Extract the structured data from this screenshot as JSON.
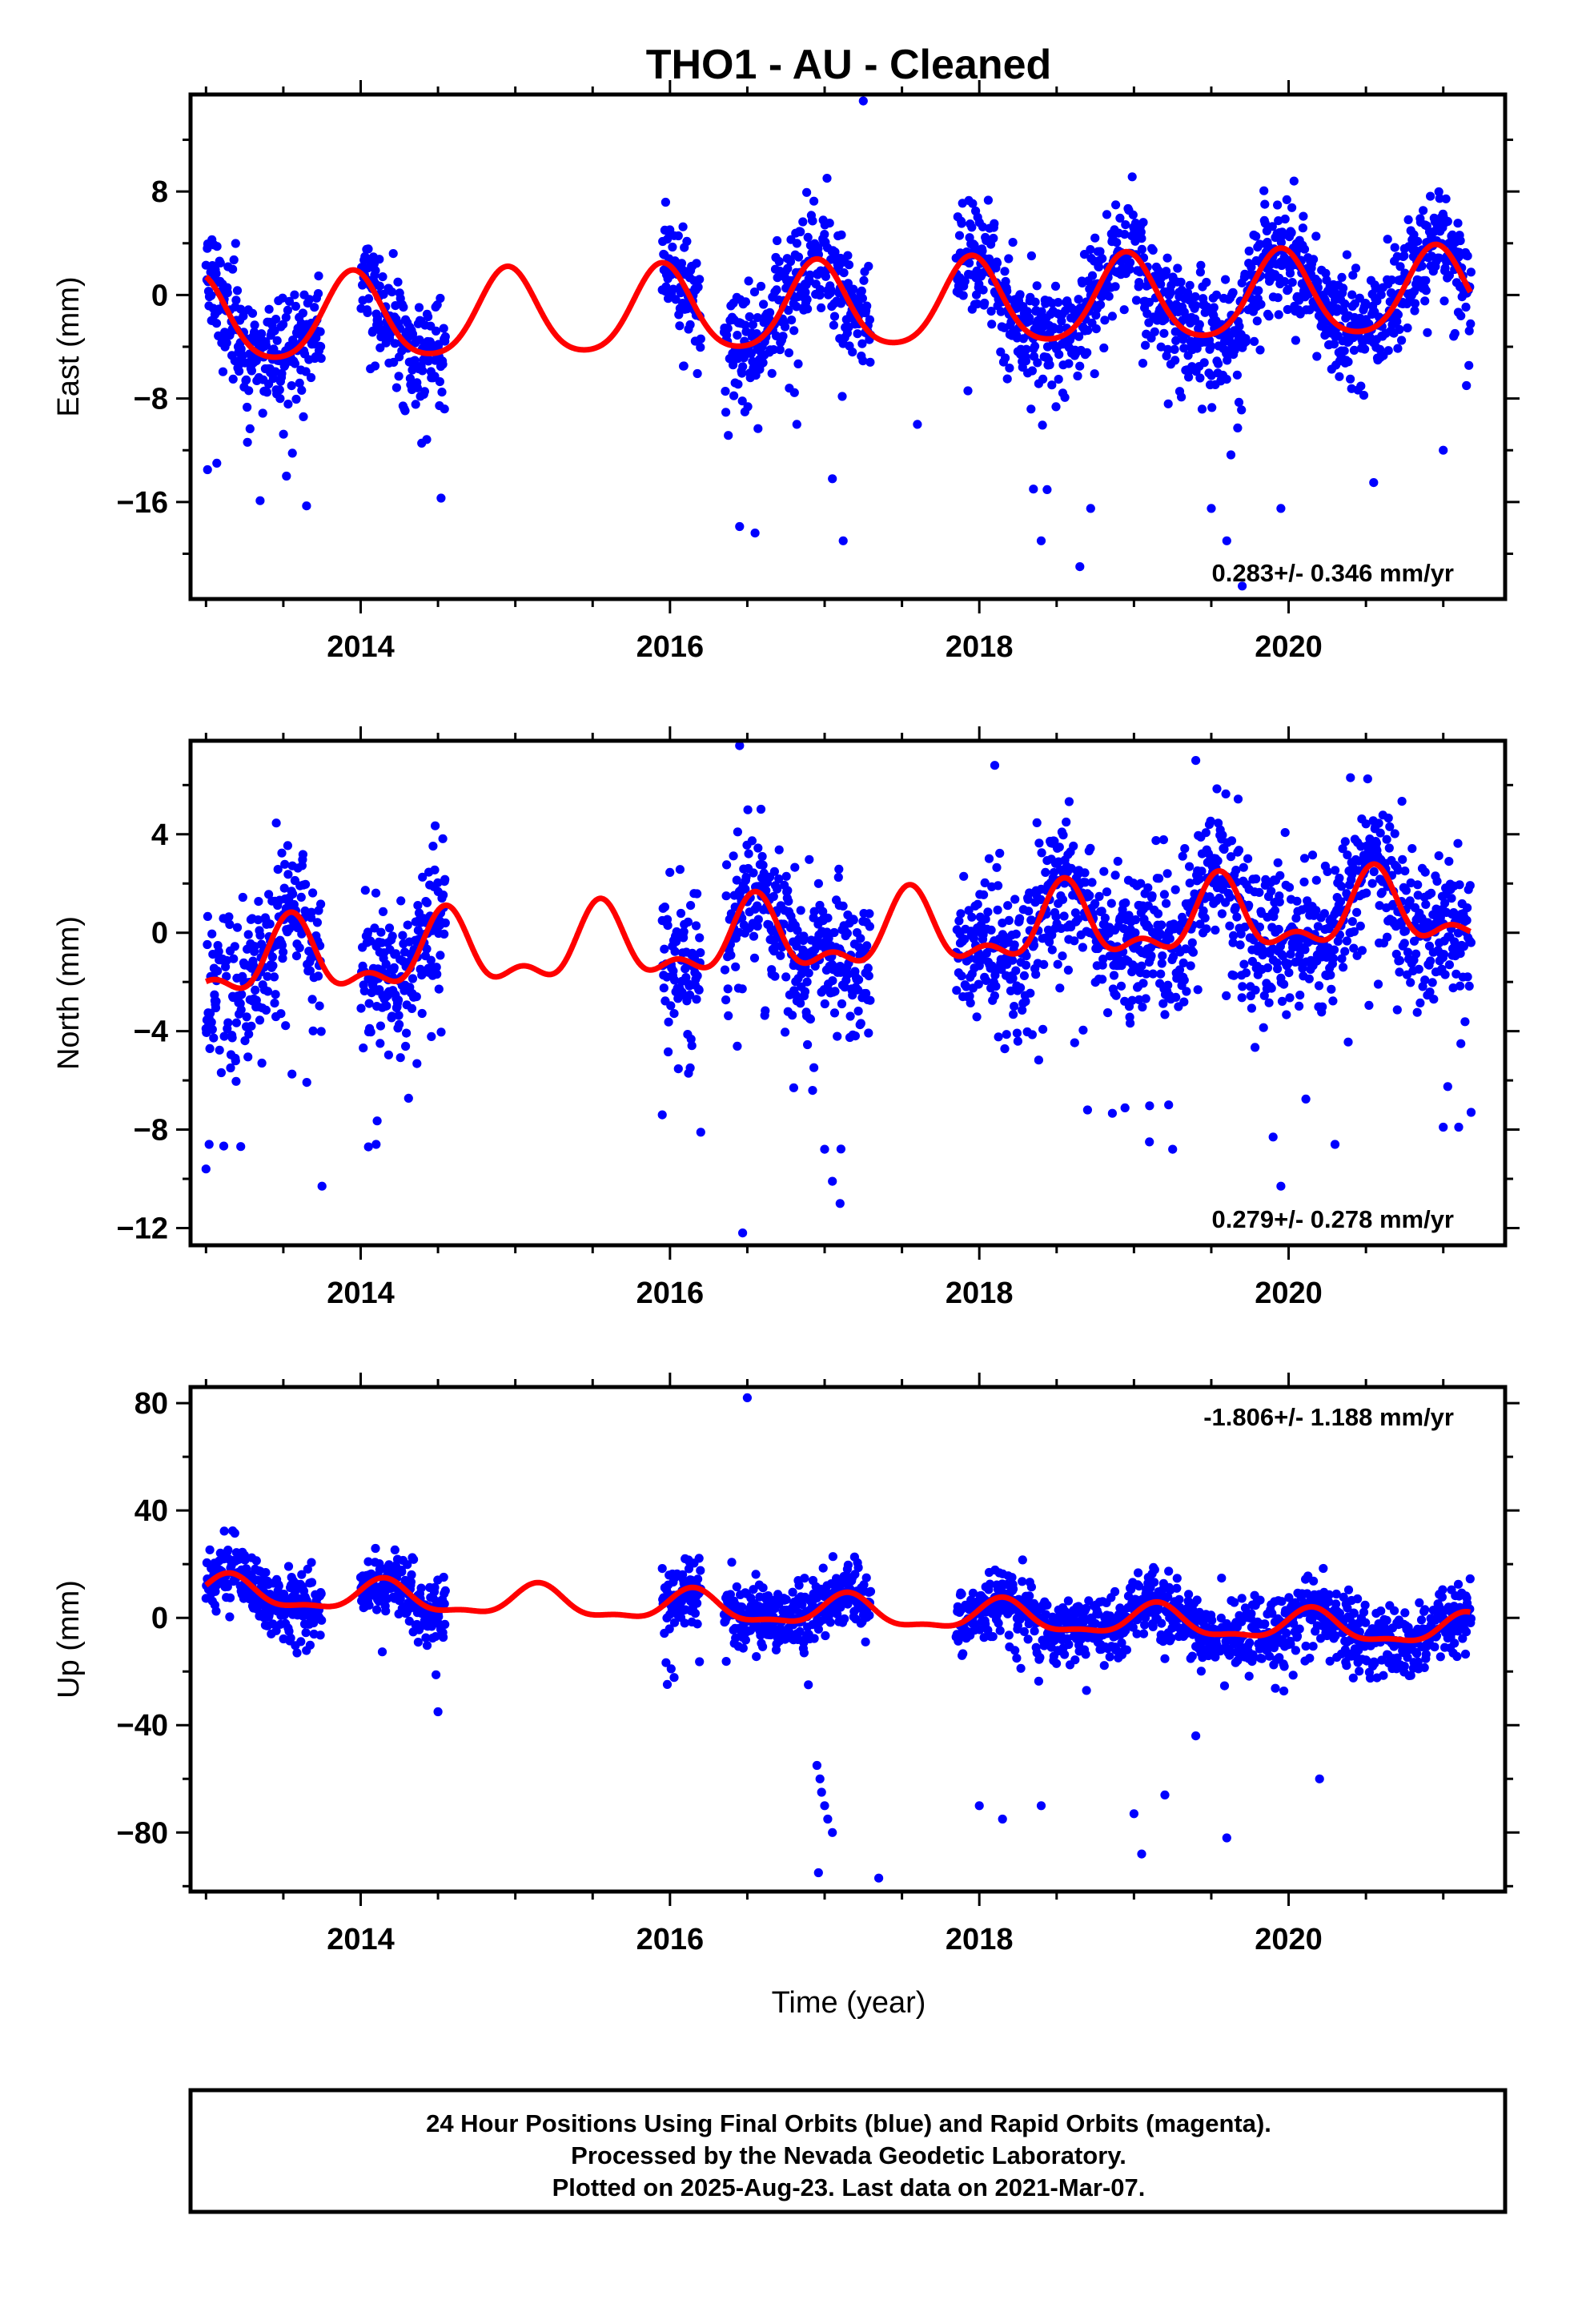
{
  "title": "THO1  - AU - Cleaned",
  "xlabel": "Time (year)",
  "footer": {
    "line1": "24 Hour Positions Using Final Orbits (blue) and Rapid Orbits (magenta).",
    "line2": "Processed by the Nevada Geodetic Laboratory.",
    "line3": "Plotted on 2025-Aug-23. Last data on 2021-Mar-07."
  },
  "colors": {
    "final_orbits": "#0000ff",
    "model": "#ff0000"
  },
  "chart_data": [
    {
      "type": "scatter",
      "component": "east",
      "ylabel": "East (mm)",
      "xlim": [
        2012.9,
        2021.4
      ],
      "ylim": [
        -23.5,
        15.5
      ],
      "yticks": [
        8,
        0,
        -8,
        -16
      ],
      "yticklabels": [
        "8",
        "0",
        "−8",
        "−16"
      ],
      "xticks": [
        2014,
        2016,
        2018,
        2020
      ],
      "xticklabels": [
        "2014",
        "2016",
        "2018",
        "2020"
      ],
      "rate": "0.283+/- 0.346 mm/yr",
      "rate_position": "bottom-right",
      "data_segments": [
        [
          2013.0,
          2013.75
        ],
        [
          2014.0,
          2014.55
        ],
        [
          2015.95,
          2016.2
        ],
        [
          2016.35,
          2017.3
        ],
        [
          2017.85,
          2021.18
        ]
      ],
      "model": {
        "offset": -1.0,
        "rate": 0.283,
        "annual_amp": 3.3,
        "annual_phase_peak": 2013.95,
        "semiannual_amp": 0.5,
        "ref_year": 2017.0
      },
      "scatter_sd": 2.0,
      "outliers": [
        [
          2013.01,
          -13.5
        ],
        [
          2013.07,
          -13.0
        ],
        [
          2013.35,
          -15.9
        ],
        [
          2013.52,
          -14.0
        ],
        [
          2013.65,
          -16.3
        ],
        [
          2014.52,
          -15.7
        ],
        [
          2016.45,
          -17.9
        ],
        [
          2016.55,
          -18.4
        ],
        [
          2016.82,
          -10.0
        ],
        [
          2017.05,
          -14.2
        ],
        [
          2017.12,
          -19.0
        ],
        [
          2017.25,
          15.0
        ],
        [
          2018.35,
          -15.0
        ],
        [
          2018.4,
          -19.0
        ],
        [
          2018.65,
          -21.0
        ],
        [
          2018.72,
          -16.5
        ],
        [
          2019.5,
          -16.5
        ],
        [
          2019.6,
          -19.0
        ],
        [
          2019.7,
          -22.5
        ],
        [
          2019.95,
          -16.5
        ],
        [
          2020.55,
          -14.5
        ],
        [
          2021.0,
          -12.0
        ],
        [
          2021.15,
          -7.0
        ],
        [
          2017.6,
          -10.0
        ]
      ],
      "series": [
        {
          "name": "",
          "color": "#0000ff"
        }
      ]
    },
    {
      "type": "scatter",
      "component": "north",
      "ylabel": "North (mm)",
      "xlim": [
        2012.9,
        2021.4
      ],
      "ylim": [
        -12.7,
        7.8
      ],
      "yticks": [
        4,
        0,
        -4,
        -8,
        -12
      ],
      "yticklabels": [
        "4",
        "0",
        "−4",
        "−8",
        "−12"
      ],
      "xticks": [
        2014,
        2016,
        2018,
        2020
      ],
      "xticklabels": [
        "2014",
        "2016",
        "2018",
        "2020"
      ],
      "rate": "0.279+/- 0.278 mm/yr",
      "rate_position": "bottom-right",
      "data_segments": [
        [
          2013.0,
          2013.75
        ],
        [
          2014.0,
          2014.55
        ],
        [
          2015.95,
          2016.2
        ],
        [
          2016.35,
          2017.3
        ],
        [
          2017.85,
          2021.18
        ]
      ],
      "model": {
        "offset": -0.2,
        "rate": 0.279,
        "annual_amp": 1.3,
        "annual_phase_peak": 2013.55,
        "semiannual_amp": 0.7,
        "ref_year": 2017.0
      },
      "scatter_sd": 1.5,
      "outliers": [
        [
          2013.0,
          -9.6
        ],
        [
          2013.02,
          -8.6
        ],
        [
          2013.75,
          -10.3
        ],
        [
          2014.05,
          -8.7
        ],
        [
          2014.1,
          -8.6
        ],
        [
          2016.45,
          7.6
        ],
        [
          2016.47,
          -12.2
        ],
        [
          2017.0,
          -8.8
        ],
        [
          2017.05,
          -10.1
        ],
        [
          2017.1,
          -11.0
        ],
        [
          2016.8,
          -6.3
        ],
        [
          2018.7,
          -7.2
        ],
        [
          2019.1,
          -8.5
        ],
        [
          2019.25,
          -8.8
        ],
        [
          2019.95,
          -10.3
        ],
        [
          2019.9,
          -8.3
        ],
        [
          2020.3,
          -8.6
        ],
        [
          2021.0,
          -7.9
        ],
        [
          2021.1,
          -7.9
        ],
        [
          2021.18,
          -7.3
        ],
        [
          2015.95,
          -7.4
        ],
        [
          2018.1,
          6.8
        ],
        [
          2019.4,
          7.0
        ],
        [
          2020.4,
          6.3
        ]
      ],
      "series": [
        {
          "name": "",
          "color": "#0000ff"
        }
      ]
    },
    {
      "type": "scatter",
      "component": "up",
      "ylabel": "Up (mm)",
      "xlim": [
        2012.9,
        2021.4
      ],
      "ylim": [
        -102,
        86
      ],
      "yticks": [
        80,
        40,
        0,
        -40,
        -80
      ],
      "yticklabels": [
        "80",
        "40",
        "0",
        "−40",
        "−80"
      ],
      "xticks": [
        2014,
        2016,
        2018,
        2020
      ],
      "xticklabels": [
        "2014",
        "2016",
        "2018",
        "2020"
      ],
      "rate": "-1.806+/- 1.188 mm/yr",
      "rate_position": "top-right",
      "data_segments": [
        [
          2013.0,
          2013.75
        ],
        [
          2014.0,
          2014.55
        ],
        [
          2015.95,
          2016.2
        ],
        [
          2016.35,
          2017.3
        ],
        [
          2017.85,
          2021.18
        ]
      ],
      "model": {
        "offset": 5.0,
        "rate": -1.806,
        "annual_amp": 5.5,
        "annual_phase_peak": 2014.15,
        "semiannual_amp": 2.0,
        "ref_year": 2015.5
      },
      "scatter_sd": 6.0,
      "outliers": [
        [
          2016.5,
          82
        ],
        [
          2016.95,
          -55
        ],
        [
          2016.97,
          -60
        ],
        [
          2016.98,
          -65
        ],
        [
          2017.0,
          -70
        ],
        [
          2017.02,
          -75
        ],
        [
          2016.96,
          -95
        ],
        [
          2017.05,
          -80
        ],
        [
          2017.35,
          -97
        ],
        [
          2018.0,
          -70
        ],
        [
          2018.15,
          -75
        ],
        [
          2018.4,
          -70
        ],
        [
          2019.0,
          -73
        ],
        [
          2019.05,
          -88
        ],
        [
          2019.2,
          -66
        ],
        [
          2019.4,
          -44
        ],
        [
          2019.6,
          -82
        ],
        [
          2020.2,
          -60
        ],
        [
          2014.5,
          -35
        ]
      ],
      "series": [
        {
          "name": "",
          "color": "#0000ff"
        }
      ]
    }
  ]
}
